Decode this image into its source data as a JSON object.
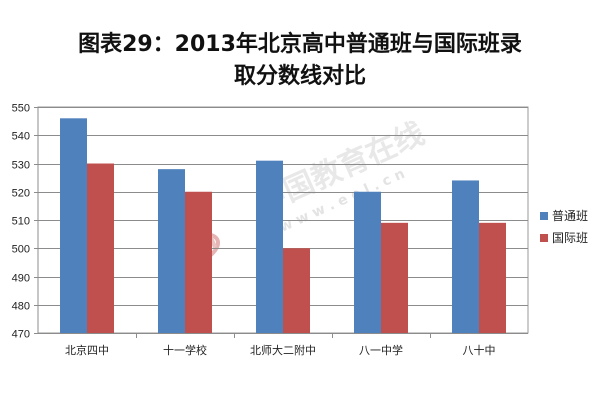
{
  "chart_data": {
    "type": "bar",
    "title": "图表29：2013年北京高中普通班与国际班录",
    "subtitle": "取分数线对比",
    "categories": [
      "北京四中",
      "十一学校",
      "北师大二附中",
      "八一中学",
      "八十中"
    ],
    "series": [
      {
        "name": "普通班",
        "color": "#4F81BD",
        "values": [
          546,
          528,
          531,
          520,
          524
        ]
      },
      {
        "name": "国际班",
        "color": "#C0504D",
        "values": [
          530,
          520,
          500,
          509,
          509
        ]
      }
    ],
    "ylim": [
      470,
      550
    ],
    "yticks": [
      470,
      480,
      490,
      500,
      510,
      520,
      530,
      540,
      550
    ],
    "grid": true,
    "legend": "right"
  },
  "watermark": {
    "text": "中国教育在线",
    "url": "w w w . e o l . c n",
    "logo": "eol"
  }
}
